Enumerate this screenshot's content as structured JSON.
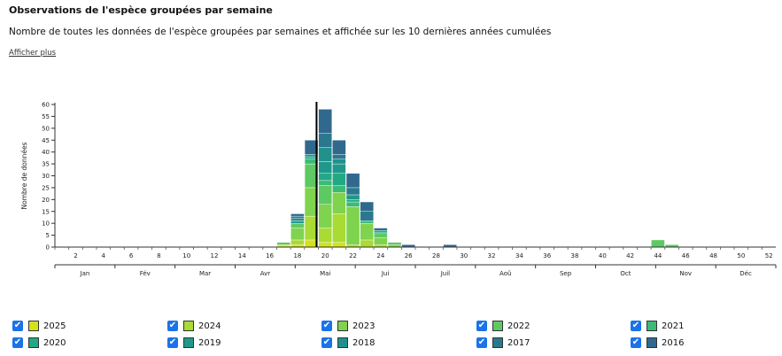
{
  "header": {
    "title": "Observations de l'espèce groupées par semaine",
    "subtitle": "Nombre de toutes les données de l'espèce groupées par semaines et affichée sur les 10 dernières années cumulées",
    "more_link": "Afficher plus"
  },
  "chart_data": {
    "type": "bar",
    "stacked": true,
    "ylabel": "Nombre de données",
    "ylim": [
      0,
      60
    ],
    "yticks": [
      0,
      5,
      10,
      15,
      20,
      25,
      30,
      35,
      40,
      45,
      50,
      55,
      60
    ],
    "week_range": [
      1,
      52
    ],
    "week_ticks": [
      2,
      4,
      6,
      8,
      10,
      12,
      14,
      16,
      18,
      20,
      22,
      24,
      26,
      28,
      30,
      32,
      34,
      36,
      38,
      40,
      42,
      44,
      46,
      48,
      50,
      52
    ],
    "months": [
      "Jan",
      "Fév",
      "Mar",
      "Avr",
      "Mai",
      "Jui",
      "Juil",
      "Aoû",
      "Sep",
      "Oct",
      "Nov",
      "Déc"
    ],
    "current_week": 20,
    "weeks": [
      17,
      18,
      19,
      20,
      21,
      22,
      23,
      24,
      25,
      26,
      29,
      44,
      45
    ],
    "series": [
      {
        "name": "2025",
        "color": "#d4e21a",
        "values": [
          0.5,
          1,
          3,
          2,
          2,
          0,
          0,
          0,
          0,
          0,
          0,
          0,
          0
        ]
      },
      {
        "name": "2024",
        "color": "#a8db34",
        "values": [
          0.5,
          2,
          10,
          6,
          12,
          1,
          3,
          1,
          0,
          0,
          0,
          0,
          0
        ]
      },
      {
        "name": "2023",
        "color": "#7fd34e",
        "values": [
          0,
          5,
          12,
          10,
          9,
          16,
          7,
          3,
          1,
          0,
          0,
          0,
          0
        ]
      },
      {
        "name": "2022",
        "color": "#5ec962",
        "values": [
          1,
          2,
          10,
          8,
          0,
          0,
          0,
          2,
          1,
          0,
          0,
          3,
          1
        ]
      },
      {
        "name": "2021",
        "color": "#3bbb75",
        "values": [
          0,
          0,
          2,
          2,
          3,
          2,
          1,
          0,
          0,
          0,
          0,
          0,
          0
        ]
      },
      {
        "name": "2020",
        "color": "#22a884",
        "values": [
          0,
          0,
          1,
          3,
          5,
          1,
          0,
          1,
          0,
          0,
          0,
          0,
          0
        ]
      },
      {
        "name": "2019",
        "color": "#1f988b",
        "values": [
          0,
          1,
          1,
          5,
          4,
          2,
          0,
          0,
          0,
          0,
          0,
          0,
          0
        ]
      },
      {
        "name": "2018",
        "color": "#21918c",
        "values": [
          0,
          1,
          0,
          6,
          2,
          0,
          0,
          0,
          0,
          0,
          0,
          0,
          0
        ]
      },
      {
        "name": "2017",
        "color": "#2a788e",
        "values": [
          0,
          1,
          0,
          6,
          2,
          3,
          4,
          0,
          0,
          0,
          0,
          0,
          0
        ]
      },
      {
        "name": "2016",
        "color": "#31688e",
        "values": [
          0,
          1,
          6,
          10,
          6,
          6,
          4,
          1,
          0,
          1,
          1,
          0,
          0
        ]
      }
    ]
  },
  "legend": {
    "checked": true,
    "checkmark": "✔",
    "items": [
      {
        "label": "2025",
        "color": "#d4e21a"
      },
      {
        "label": "2024",
        "color": "#a8db34"
      },
      {
        "label": "2023",
        "color": "#7fd34e"
      },
      {
        "label": "2022",
        "color": "#5ec962"
      },
      {
        "label": "2021",
        "color": "#3bbb75"
      },
      {
        "label": "2020",
        "color": "#22a884"
      },
      {
        "label": "2019",
        "color": "#1f988b"
      },
      {
        "label": "2018",
        "color": "#21918c"
      },
      {
        "label": "2017",
        "color": "#2a788e"
      },
      {
        "label": "2016",
        "color": "#31688e"
      }
    ]
  }
}
